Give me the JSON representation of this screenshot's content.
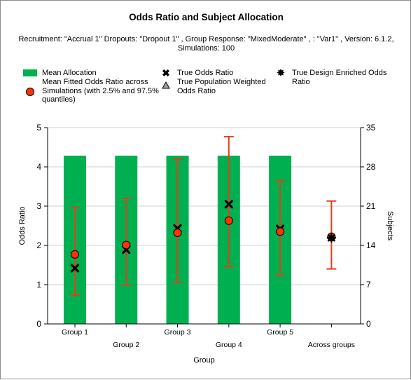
{
  "chart_data": {
    "type": "bar",
    "title": "Odds Ratio and Subject Allocation",
    "subtitle": "Recruitment: \"Accrual 1\" Dropouts: \"Dropout 1\" , Group Response: \"MixedModerate\" , : \"Var1\" , Version: 6.1.2, Simulations: 100",
    "xlabel": "Group",
    "ylabel_left": "Odds Ratio",
    "ylabel_right": "Subjects",
    "ylim_left": [
      0,
      5
    ],
    "ylim_right": [
      0,
      35
    ],
    "yticks_left": [
      "0",
      "1",
      "2",
      "3",
      "4",
      "5"
    ],
    "yticks_right": [
      "0",
      "7",
      "14",
      "21",
      "28",
      "35"
    ],
    "grid": true,
    "categories": [
      "Group 1",
      "Group 2",
      "Group 3",
      "Group 4",
      "Group 5",
      "Across groups"
    ],
    "series": [
      {
        "name": "Mean Allocation",
        "axis": "right",
        "values": [
          30,
          30,
          30,
          30,
          30,
          null
        ],
        "color": "#00b050"
      },
      {
        "name": "Mean Fitted Odds Ratio  across Simulations (with 2.5% and 97.5% quantiles)",
        "axis": "left",
        "values": [
          1.77,
          2.01,
          2.32,
          2.63,
          2.35,
          2.22
        ],
        "lower": [
          0.73,
          1.0,
          1.06,
          1.46,
          1.23,
          1.4
        ],
        "upper": [
          2.96,
          3.2,
          4.19,
          4.77,
          3.65,
          3.13
        ],
        "color": "#ff3300"
      },
      {
        "name": "True Odds Ratio",
        "axis": "left",
        "values": [
          1.42,
          1.89,
          2.43,
          3.05,
          2.42,
          null
        ]
      },
      {
        "name": "True Population Weighted Odds Ratio",
        "axis": "left",
        "values": [
          null,
          null,
          null,
          null,
          null,
          2.19
        ]
      },
      {
        "name": "True Design Enriched Odds Ratio",
        "axis": "left",
        "values": [
          null,
          null,
          null,
          null,
          null,
          2.19
        ]
      }
    ]
  },
  "colors": {
    "bar": "#00b050",
    "marker": "#ff3300",
    "errorbar": "#e0401a",
    "grid": "#d0d0d0"
  }
}
